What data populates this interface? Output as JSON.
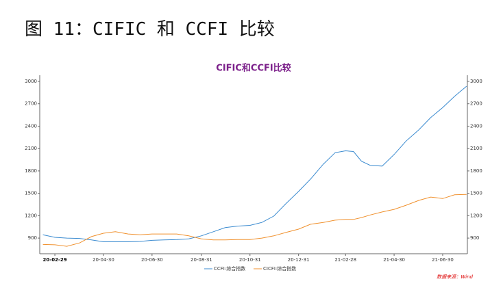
{
  "header": {
    "title": "图 11：CIFIC 和 CCFI 比较"
  },
  "chart_data": {
    "type": "line",
    "title": "CIFIC和CCFI比较",
    "x": [
      "20-02-14",
      "20-02-29",
      "20-03-15",
      "20-03-31",
      "20-04-15",
      "20-04-30",
      "20-05-15",
      "20-05-31",
      "20-06-15",
      "20-06-30",
      "20-07-15",
      "20-07-31",
      "20-08-15",
      "20-08-31",
      "20-09-15",
      "20-09-30",
      "20-10-15",
      "20-10-31",
      "20-11-15",
      "20-11-30",
      "20-12-15",
      "20-12-31",
      "21-01-15",
      "21-01-31",
      "21-02-15",
      "21-02-28",
      "21-03-10",
      "21-03-20",
      "21-03-31",
      "21-04-15",
      "21-04-30",
      "21-05-15",
      "21-05-31",
      "21-06-15",
      "21-06-30",
      "21-07-15",
      "21-07-30"
    ],
    "series": [
      {
        "name": "CCFI:综合指数",
        "color": "#3b8bd0",
        "values": [
          945,
          910,
          900,
          895,
          875,
          850,
          850,
          850,
          855,
          870,
          875,
          880,
          890,
          930,
          985,
          1040,
          1060,
          1070,
          1110,
          1195,
          1360,
          1525,
          1690,
          1890,
          2045,
          2070,
          2060,
          1930,
          1875,
          1865,
          2020,
          2200,
          2350,
          2515,
          2650,
          2800,
          2935
        ]
      },
      {
        "name": "CICFI:综合指数",
        "color": "#f0912e",
        "values": [
          815,
          810,
          790,
          835,
          920,
          965,
          985,
          955,
          945,
          955,
          955,
          955,
          930,
          890,
          875,
          875,
          880,
          880,
          900,
          930,
          975,
          1020,
          1085,
          1110,
          1140,
          1150,
          1150,
          1175,
          1210,
          1250,
          1285,
          1340,
          1405,
          1450,
          1430,
          1480,
          1485
        ]
      }
    ],
    "xlim": [
      "20-02-10",
      "21-07-31"
    ],
    "xticks": [
      "20-02-29",
      "20-04-30",
      "20-06-30",
      "20-08-31",
      "20-10-31",
      "20-12-31",
      "21-02-28",
      "21-04-30",
      "21-06-30"
    ],
    "ylim": [
      690,
      3000
    ],
    "yticks": [
      900,
      1200,
      1500,
      1800,
      2100,
      2400,
      2700,
      3000
    ],
    "y2lim": [
      690,
      3000
    ],
    "y2ticks": [
      900,
      1200,
      1500,
      1800,
      2100,
      2400,
      2700,
      3000
    ],
    "source": "数据来源：Wind"
  }
}
